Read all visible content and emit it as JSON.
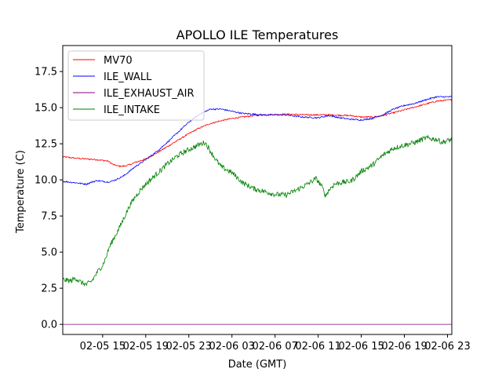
{
  "chart_data": {
    "type": "line",
    "title": "APOLLO ILE Temperatures",
    "xlabel": "Date (GMT)",
    "ylabel": "Temperature (C)",
    "x_hours_range": [
      11.3,
      47.4
    ],
    "ylim": [
      -0.7,
      19.3
    ],
    "grid": false,
    "legend_position": "upper-left",
    "x_ticks": [
      {
        "label": "02-05 15",
        "hour": 15
      },
      {
        "label": "02-05 19",
        "hour": 19
      },
      {
        "label": "02-05 23",
        "hour": 23
      },
      {
        "label": "02-06 03",
        "hour": 27
      },
      {
        "label": "02-06 07",
        "hour": 31
      },
      {
        "label": "02-06 11",
        "hour": 35
      },
      {
        "label": "02-06 15",
        "hour": 39
      },
      {
        "label": "02-06 19",
        "hour": 43
      },
      {
        "label": "02-06 23",
        "hour": 47
      }
    ],
    "y_ticks": [
      {
        "label": "0.0",
        "value": 0.0
      },
      {
        "label": "2.5",
        "value": 2.5
      },
      {
        "label": "5.0",
        "value": 5.0
      },
      {
        "label": "7.5",
        "value": 7.5
      },
      {
        "label": "10.0",
        "value": 10.0
      },
      {
        "label": "12.5",
        "value": 12.5
      },
      {
        "label": "15.0",
        "value": 15.0
      },
      {
        "label": "17.5",
        "value": 17.5
      }
    ],
    "series": [
      {
        "name": "MV70",
        "color": "#ff0000",
        "noise": 0.05,
        "points": [
          [
            11.3,
            11.6
          ],
          [
            12.5,
            11.5
          ],
          [
            13.5,
            11.45
          ],
          [
            14.5,
            11.4
          ],
          [
            15.5,
            11.3
          ],
          [
            16.0,
            11.05
          ],
          [
            16.5,
            10.95
          ],
          [
            17.0,
            10.95
          ],
          [
            17.5,
            11.05
          ],
          [
            18.0,
            11.2
          ],
          [
            19.0,
            11.45
          ],
          [
            20.0,
            11.85
          ],
          [
            21.0,
            12.3
          ],
          [
            22.0,
            12.75
          ],
          [
            23.0,
            13.2
          ],
          [
            24.0,
            13.6
          ],
          [
            25.0,
            13.9
          ],
          [
            26.0,
            14.1
          ],
          [
            27.0,
            14.25
          ],
          [
            28.0,
            14.35
          ],
          [
            29.0,
            14.45
          ],
          [
            30.0,
            14.5
          ],
          [
            32.0,
            14.55
          ],
          [
            34.0,
            14.5
          ],
          [
            36.0,
            14.5
          ],
          [
            38.0,
            14.45
          ],
          [
            39.0,
            14.35
          ],
          [
            40.0,
            14.35
          ],
          [
            41.0,
            14.45
          ],
          [
            42.0,
            14.65
          ],
          [
            43.0,
            14.85
          ],
          [
            44.0,
            15.05
          ],
          [
            45.0,
            15.25
          ],
          [
            46.0,
            15.45
          ],
          [
            47.4,
            15.55
          ]
        ]
      },
      {
        "name": "ILE_WALL",
        "color": "#0000ff",
        "noise": 0.05,
        "points": [
          [
            11.3,
            9.9
          ],
          [
            12.5,
            9.8
          ],
          [
            13.0,
            9.75
          ],
          [
            13.5,
            9.7
          ],
          [
            14.0,
            9.85
          ],
          [
            14.5,
            9.95
          ],
          [
            15.5,
            9.85
          ],
          [
            16.0,
            9.95
          ],
          [
            16.5,
            10.1
          ],
          [
            17.0,
            10.3
          ],
          [
            17.5,
            10.6
          ],
          [
            18.0,
            10.9
          ],
          [
            19.0,
            11.4
          ],
          [
            20.0,
            11.95
          ],
          [
            21.0,
            12.6
          ],
          [
            22.0,
            13.3
          ],
          [
            23.0,
            14.0
          ],
          [
            24.0,
            14.55
          ],
          [
            25.0,
            14.9
          ],
          [
            26.0,
            14.9
          ],
          [
            27.0,
            14.75
          ],
          [
            28.0,
            14.6
          ],
          [
            30.0,
            14.5
          ],
          [
            32.0,
            14.5
          ],
          [
            33.5,
            14.35
          ],
          [
            35.0,
            14.3
          ],
          [
            36.0,
            14.45
          ],
          [
            37.0,
            14.3
          ],
          [
            38.0,
            14.2
          ],
          [
            39.0,
            14.15
          ],
          [
            40.0,
            14.25
          ],
          [
            41.0,
            14.5
          ],
          [
            42.0,
            14.9
          ],
          [
            43.0,
            15.15
          ],
          [
            44.0,
            15.3
          ],
          [
            45.0,
            15.55
          ],
          [
            46.0,
            15.75
          ],
          [
            47.4,
            15.75
          ]
        ]
      },
      {
        "name": "ILE_EXHAUST_AIR",
        "color": "#800080",
        "noise": 0,
        "points": [
          [
            11.3,
            0.0
          ],
          [
            47.4,
            0.0
          ]
        ]
      },
      {
        "name": "ILE_INTAKE",
        "color": "#008000",
        "noise": 0.18,
        "points": [
          [
            11.3,
            3.1
          ],
          [
            12.0,
            3.0
          ],
          [
            12.5,
            3.2
          ],
          [
            13.0,
            2.9
          ],
          [
            13.5,
            2.75
          ],
          [
            14.0,
            3.0
          ],
          [
            14.5,
            3.6
          ],
          [
            15.0,
            4.1
          ],
          [
            15.3,
            4.6
          ],
          [
            15.6,
            5.3
          ],
          [
            16.0,
            5.9
          ],
          [
            16.5,
            6.6
          ],
          [
            17.0,
            7.4
          ],
          [
            17.5,
            8.2
          ],
          [
            18.0,
            8.8
          ],
          [
            18.5,
            9.3
          ],
          [
            19.0,
            9.7
          ],
          [
            20.0,
            10.4
          ],
          [
            21.0,
            11.1
          ],
          [
            22.0,
            11.7
          ],
          [
            23.0,
            12.1
          ],
          [
            24.0,
            12.45
          ],
          [
            24.5,
            12.6
          ],
          [
            25.0,
            12.0
          ],
          [
            25.5,
            11.4
          ],
          [
            26.0,
            10.9
          ],
          [
            27.0,
            10.5
          ],
          [
            28.0,
            9.8
          ],
          [
            29.0,
            9.4
          ],
          [
            30.0,
            9.2
          ],
          [
            31.0,
            9.0
          ],
          [
            32.0,
            8.95
          ],
          [
            33.0,
            9.3
          ],
          [
            34.0,
            9.7
          ],
          [
            34.8,
            10.1
          ],
          [
            35.3,
            9.6
          ],
          [
            35.7,
            8.9
          ],
          [
            36.0,
            9.3
          ],
          [
            36.5,
            9.7
          ],
          [
            37.0,
            9.8
          ],
          [
            38.0,
            9.9
          ],
          [
            38.5,
            10.2
          ],
          [
            39.0,
            10.6
          ],
          [
            40.0,
            11.0
          ],
          [
            41.0,
            11.7
          ],
          [
            42.0,
            12.2
          ],
          [
            43.0,
            12.4
          ],
          [
            44.0,
            12.6
          ],
          [
            45.0,
            12.9
          ],
          [
            46.0,
            12.8
          ],
          [
            46.5,
            12.6
          ],
          [
            47.4,
            12.8
          ]
        ]
      }
    ]
  }
}
